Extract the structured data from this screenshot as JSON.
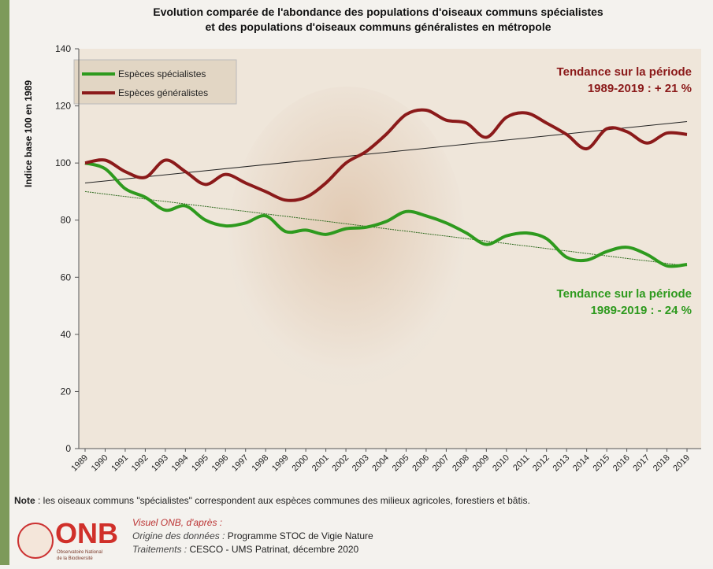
{
  "chart_data": {
    "type": "line",
    "title": [
      "Evolution comparée de l'abondance des populations d'oiseaux communs spécialistes",
      "et des populations d'oiseaux communs généralistes en métropole"
    ],
    "y_label": "Indice base 100 en 1989",
    "categories": [
      "1989",
      "1990",
      "1991",
      "1992",
      "1993",
      "1994",
      "1995",
      "1996",
      "1997",
      "1998",
      "1999",
      "2000",
      "2001",
      "2002",
      "2003",
      "2004",
      "2005",
      "2006",
      "2007",
      "2008",
      "2009",
      "2010",
      "2011",
      "2012",
      "2013",
      "2014",
      "2015",
      "2016",
      "2017",
      "2018",
      "2019"
    ],
    "series": [
      {
        "name": "Espèces spécialistes",
        "color": "#2e9a1e",
        "values": [
          100,
          98,
          91,
          88,
          83.5,
          85,
          80,
          78,
          79,
          81.5,
          76,
          76.5,
          75,
          77,
          77.5,
          79.5,
          83,
          81.5,
          79,
          75.5,
          71.5,
          74.5,
          75.5,
          73.5,
          67,
          66,
          69,
          70.5,
          68,
          64,
          64.5
        ]
      },
      {
        "name": "Espèces généralistes",
        "color": "#8b1a1a",
        "values": [
          100,
          101,
          97,
          95,
          101,
          97,
          92.5,
          96,
          93,
          90,
          87,
          88,
          93,
          100,
          104,
          110,
          117,
          118.5,
          115,
          114,
          109,
          116,
          117.5,
          114,
          110,
          105,
          112,
          111,
          107,
          110.5,
          110
        ]
      }
    ],
    "trends": [
      {
        "color": "#2e6a1e",
        "values": [
          90,
          64
        ]
      },
      {
        "color": "#222222",
        "values": [
          93,
          114.5
        ]
      }
    ],
    "annotations": [
      {
        "lines": [
          "Tendance sur la période",
          "1989-2019 : + 21 %"
        ],
        "color": "#8b1a1a"
      },
      {
        "lines": [
          "Tendance sur la période",
          "1989-2019 : - 24 %"
        ],
        "color": "#2e9a1e"
      }
    ],
    "ylim": [
      0,
      140
    ],
    "yticks": [
      0,
      20,
      40,
      60,
      80,
      100,
      120,
      140
    ],
    "legend": "top-left"
  },
  "footer": {
    "note_label": "Note",
    "note": " : les oiseaux communs \"spécialistes\" correspondent aux espèces communes des milieux agricoles, forestiers et bâtis.",
    "logo": "ONB",
    "logo_sub": [
      "Observatoire National",
      "de la Biodiversité"
    ],
    "lines": [
      {
        "label": "Visuel ONB, d'après :",
        "text": ""
      },
      {
        "label": "Origine des données :",
        "text": " Programme STOC de Vigie Nature"
      },
      {
        "label": "Traitements :",
        "text": " CESCO - UMS Patrinat, décembre 2020"
      }
    ]
  }
}
